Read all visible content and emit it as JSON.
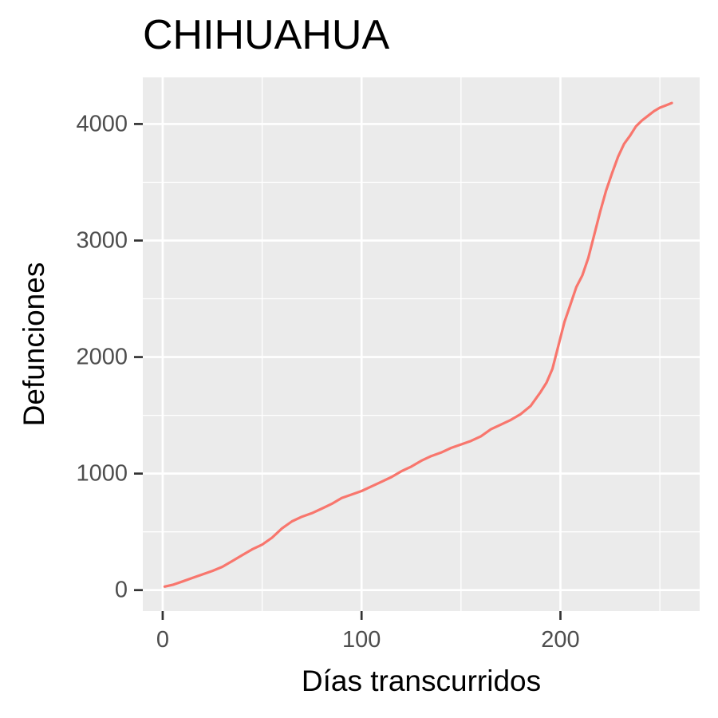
{
  "chart_data": {
    "type": "line",
    "title": "CHIHUAHUA",
    "xlabel": "Días transcurridos",
    "ylabel": "Defunciones",
    "xlim": [
      -10,
      270
    ],
    "ylim": [
      -180,
      4400
    ],
    "x_ticks": [
      0,
      100,
      200
    ],
    "x_tick_labels": [
      "0",
      "100",
      "200"
    ],
    "x_minor_ticks": [
      50,
      150,
      250
    ],
    "y_ticks": [
      0,
      1000,
      2000,
      3000,
      4000
    ],
    "y_tick_labels": [
      "0",
      "1000",
      "2000",
      "3000",
      "4000"
    ],
    "y_minor_ticks": [
      500,
      1500,
      2500,
      3500
    ],
    "grid": true,
    "legend": "none",
    "colors": {
      "panel_background": "#ebebeb",
      "grid": "#ffffff",
      "line": "#f8766d"
    },
    "series": [
      {
        "x": [
          1,
          5,
          10,
          15,
          20,
          25,
          30,
          35,
          40,
          45,
          50,
          55,
          60,
          65,
          70,
          75,
          80,
          85,
          90,
          95,
          100,
          105,
          110,
          115,
          120,
          125,
          130,
          135,
          140,
          145,
          150,
          155,
          160,
          165,
          170,
          175,
          180,
          185,
          190,
          193,
          196,
          199,
          202,
          205,
          208,
          211,
          214,
          217,
          220,
          223,
          226,
          229,
          232,
          235,
          238,
          241,
          244,
          247,
          250,
          253,
          256
        ],
        "y": [
          30,
          45,
          75,
          105,
          135,
          165,
          200,
          250,
          300,
          350,
          390,
          450,
          530,
          590,
          630,
          660,
          700,
          740,
          790,
          820,
          850,
          890,
          930,
          970,
          1020,
          1060,
          1110,
          1150,
          1180,
          1220,
          1250,
          1280,
          1320,
          1380,
          1420,
          1460,
          1510,
          1580,
          1700,
          1780,
          1900,
          2100,
          2300,
          2450,
          2600,
          2700,
          2850,
          3050,
          3250,
          3430,
          3580,
          3720,
          3830,
          3900,
          3980,
          4030,
          4070,
          4110,
          4140,
          4160,
          4180
        ]
      }
    ]
  }
}
